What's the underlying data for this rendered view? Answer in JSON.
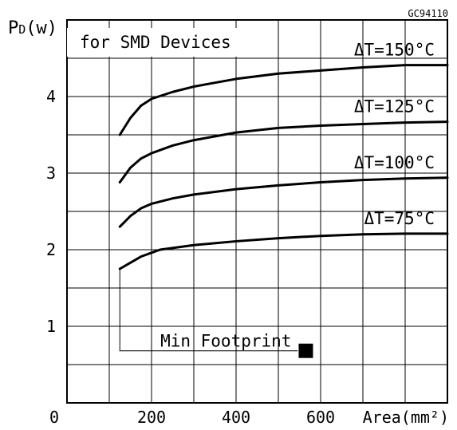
{
  "chart_data": {
    "type": "line",
    "figure_code": "GC94110",
    "ylabel": "P₀(w)",
    "ylabel_main": "P",
    "ylabel_sub": "D",
    "ylabel_unit": "(w)",
    "xlabel": "Area(mm²)",
    "annotation": "for SMD Devices",
    "min_footprint_label": "Min Footprint",
    "origin_label": "0",
    "xlim": [
      0,
      900
    ],
    "ylim": [
      0,
      5
    ],
    "x_ticks": [
      200,
      400,
      600
    ],
    "y_ticks": [
      1,
      2,
      3,
      4
    ],
    "grid": true,
    "min_footprint_point": {
      "x": 565,
      "y": 0.68
    },
    "series": [
      {
        "name": "ΔT=150°C",
        "x": [
          125,
          150,
          175,
          200,
          250,
          300,
          400,
          500,
          600,
          700,
          800,
          900
        ],
        "y": [
          3.5,
          3.72,
          3.88,
          3.97,
          4.06,
          4.13,
          4.23,
          4.3,
          4.34,
          4.38,
          4.41,
          4.41
        ]
      },
      {
        "name": "ΔT=125°C",
        "x": [
          125,
          150,
          175,
          200,
          250,
          300,
          400,
          500,
          600,
          700,
          800,
          900
        ],
        "y": [
          2.88,
          3.07,
          3.19,
          3.26,
          3.36,
          3.43,
          3.53,
          3.59,
          3.62,
          3.64,
          3.66,
          3.67
        ]
      },
      {
        "name": "ΔT=100°C",
        "x": [
          125,
          150,
          175,
          200,
          250,
          300,
          400,
          500,
          600,
          700,
          800,
          900
        ],
        "y": [
          2.3,
          2.44,
          2.54,
          2.6,
          2.67,
          2.72,
          2.79,
          2.84,
          2.88,
          2.91,
          2.93,
          2.94
        ]
      },
      {
        "name": "ΔT=75°C",
        "x": [
          125,
          150,
          175,
          200,
          220,
          300,
          400,
          500,
          600,
          700,
          800,
          900
        ],
        "y": [
          1.75,
          1.83,
          1.91,
          1.96,
          2.0,
          2.06,
          2.11,
          2.15,
          2.18,
          2.2,
          2.21,
          2.21
        ]
      }
    ]
  }
}
